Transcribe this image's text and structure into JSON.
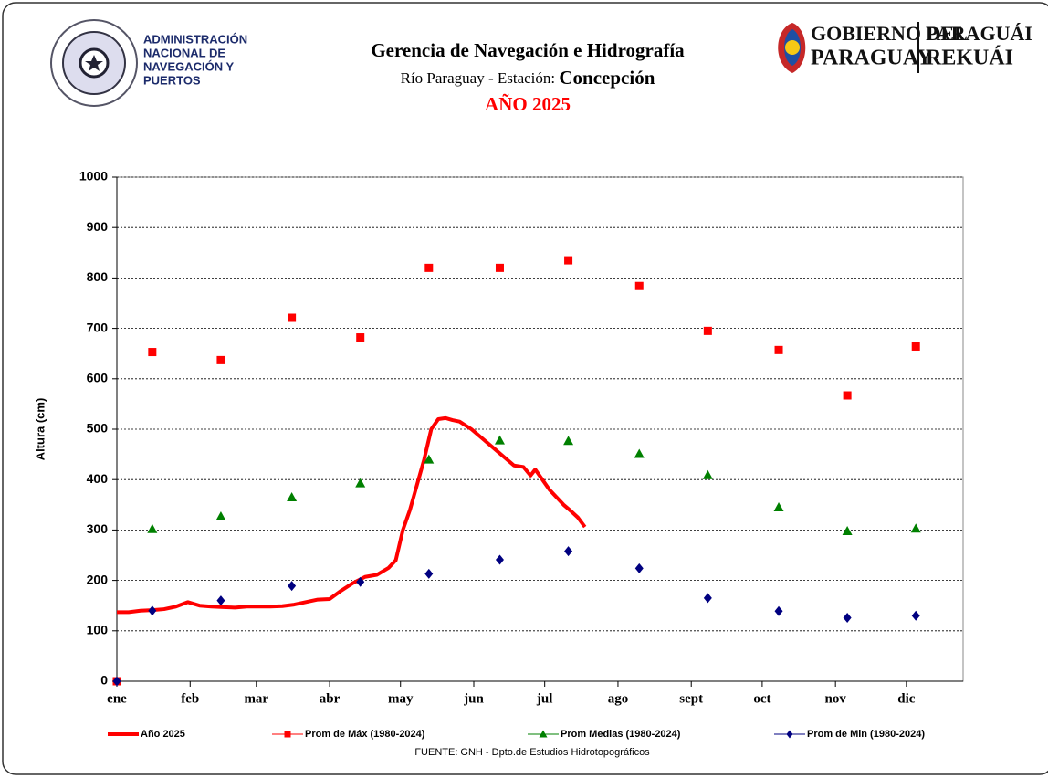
{
  "header": {
    "agency": [
      "ADMINISTRACIÓN",
      "NACIONAL DE",
      "NAVEGACIÓN Y",
      "PUERTOS"
    ],
    "government": [
      "GOBIERNO DEL",
      "PARAGUAY"
    ],
    "slogan": [
      "PARAGUÁI",
      "REKUÁI"
    ]
  },
  "chart_data": {
    "type": "line",
    "title": "Gerencia de Navegación e Hidrografía",
    "subtitle": [
      "Río Paraguay - Estación:",
      "Concepción"
    ],
    "year_title": "AÑO 2025",
    "y_label": "Altura (cm)",
    "source": "FUENTE: GNH - Dpto.de Estudios Hidrotopográficos",
    "xlim": [
      0,
      358
    ],
    "xticks": [
      {
        "value": 0,
        "label": "ene"
      },
      {
        "value": 31,
        "label": "feb"
      },
      {
        "value": 59,
        "label": "mar"
      },
      {
        "value": 90,
        "label": "abr"
      },
      {
        "value": 120,
        "label": "may"
      },
      {
        "value": 151,
        "label": "jun"
      },
      {
        "value": 181,
        "label": "jul"
      },
      {
        "value": 212,
        "label": "ago"
      },
      {
        "value": 243,
        "label": "sept"
      },
      {
        "value": 273,
        "label": "oct"
      },
      {
        "value": 304,
        "label": "nov"
      },
      {
        "value": 334,
        "label": "dic"
      }
    ],
    "ylim": [
      0,
      1000
    ],
    "yticks": [
      0,
      100,
      200,
      300,
      400,
      500,
      600,
      700,
      800,
      900,
      1000
    ],
    "grid": true,
    "series": [
      {
        "name": "Año 2025",
        "color": "#ff0000",
        "style": "line",
        "x": [
          0,
          5,
          10,
          15,
          20,
          25,
          30,
          35,
          40,
          45,
          50,
          55,
          60,
          65,
          70,
          75,
          80,
          85,
          90,
          95,
          100,
          105,
          110,
          115,
          118,
          121,
          124,
          127,
          130,
          133,
          136,
          139,
          142,
          145,
          150,
          155,
          160,
          165,
          168,
          172,
          175,
          177,
          180,
          183,
          186,
          189,
          192,
          195,
          198
        ],
        "values": [
          137,
          137,
          140,
          141,
          143,
          148,
          157,
          150,
          148,
          147,
          146,
          148,
          148,
          148,
          149,
          152,
          157,
          162,
          163,
          180,
          195,
          207,
          211,
          225,
          240,
          300,
          340,
          390,
          440,
          500,
          520,
          522,
          518,
          515,
          500,
          480,
          460,
          440,
          428,
          425,
          408,
          420,
          400,
          380,
          365,
          350,
          338,
          325,
          306
        ]
      },
      {
        "name": "Prom de Máx (1980-2024)",
        "color": "#ff0000",
        "style": "square",
        "x": [
          0,
          15,
          44,
          74,
          103,
          132,
          162,
          191,
          221,
          250,
          280,
          309,
          338
        ],
        "values": [
          0,
          653,
          637,
          721,
          682,
          820,
          820,
          835,
          784,
          695,
          657,
          567,
          664
        ]
      },
      {
        "name": "Prom Medias (1980-2024)",
        "color": "#008000",
        "style": "triangle",
        "x": [
          15,
          44,
          74,
          103,
          132,
          162,
          191,
          221,
          250,
          280,
          309,
          338
        ],
        "values": [
          302,
          327,
          365,
          393,
          440,
          478,
          477,
          451,
          409,
          345,
          298,
          303
        ]
      },
      {
        "name": "Prom de Min  (1980-2024)",
        "color": "#000080",
        "style": "diamond",
        "x": [
          0,
          15,
          44,
          74,
          103,
          132,
          162,
          191,
          221,
          250,
          280,
          309,
          338
        ],
        "values": [
          0,
          140,
          160,
          189,
          197,
          213,
          241,
          258,
          224,
          165,
          139,
          126,
          130
        ]
      }
    ]
  }
}
